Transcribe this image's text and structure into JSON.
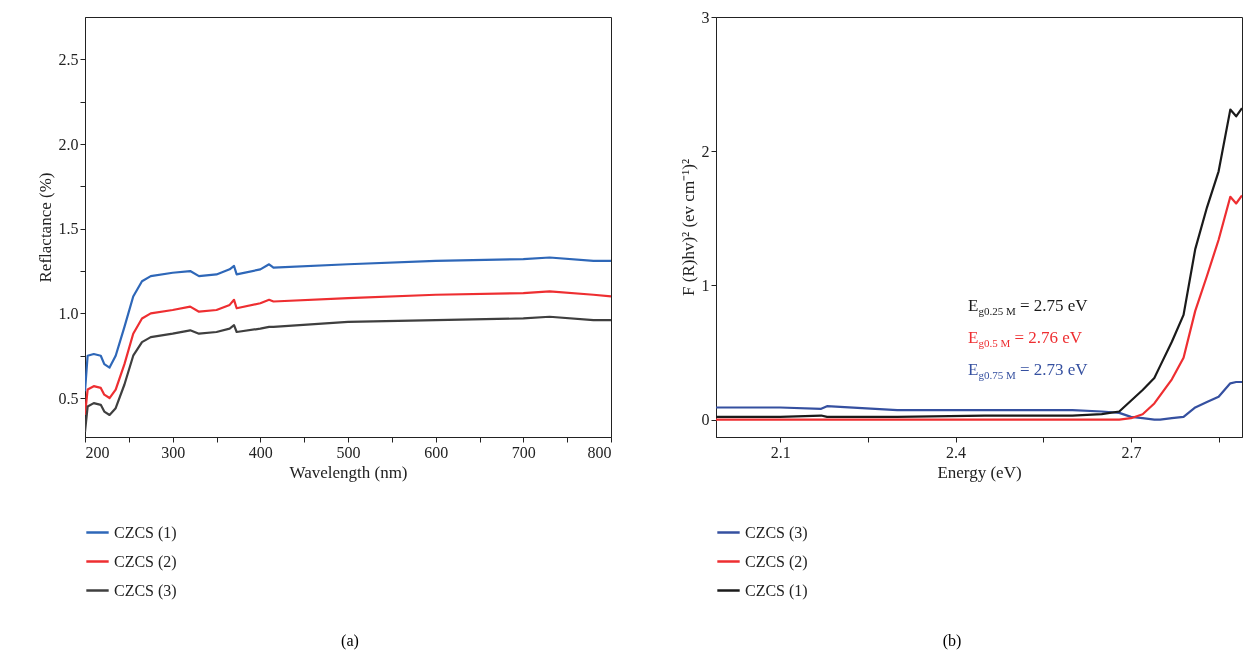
{
  "chart_data": [
    {
      "type": "line",
      "xlabel": "Wavelength (nm)",
      "ylabel": "Reflactance (%)",
      "xlim": [
        200,
        800
      ],
      "ylim": [
        0.27,
        2.75
      ],
      "xticks": [
        200,
        {
          "value": 250,
          "label": null
        },
        300,
        {
          "value": 350,
          "label": null
        },
        400,
        {
          "value": 450,
          "label": null
        },
        500,
        {
          "value": 550,
          "label": null
        },
        600,
        {
          "value": 650,
          "label": null
        },
        700,
        {
          "value": 750,
          "label": null
        },
        800
      ],
      "yticks": [
        0.5,
        {
          "value": 0.75,
          "label": null
        },
        {
          "value": 1,
          "label": "1.0"
        },
        {
          "value": 1.25,
          "label": null
        },
        1.5,
        {
          "value": 1.75,
          "label": null
        },
        {
          "value": 2,
          "label": "2.0"
        },
        {
          "value": 2.25,
          "label": null
        },
        2.5
      ],
      "legend": "bottom",
      "annotations": [
        "(a)"
      ],
      "x": [
        200,
        203,
        210,
        218,
        222,
        228,
        235,
        245,
        255,
        265,
        275,
        300,
        320,
        330,
        350,
        365,
        370,
        373,
        400,
        410,
        415,
        500,
        600,
        700,
        730,
        780,
        800
      ],
      "series": [
        {
          "name": "CZCS (1)",
          "color": "#2e67b8",
          "values": [
            0.54,
            0.75,
            0.76,
            0.75,
            0.7,
            0.68,
            0.75,
            0.92,
            1.1,
            1.19,
            1.22,
            1.24,
            1.25,
            1.22,
            1.23,
            1.26,
            1.28,
            1.23,
            1.26,
            1.29,
            1.27,
            1.29,
            1.31,
            1.32,
            1.33,
            1.31,
            1.31
          ]
        },
        {
          "name": "CZCS (2)",
          "color": "#ee2e31",
          "values": [
            0.4,
            0.55,
            0.57,
            0.56,
            0.52,
            0.5,
            0.55,
            0.7,
            0.88,
            0.97,
            1.0,
            1.02,
            1.04,
            1.01,
            1.02,
            1.05,
            1.08,
            1.03,
            1.06,
            1.08,
            1.07,
            1.09,
            1.11,
            1.12,
            1.13,
            1.11,
            1.1
          ]
        },
        {
          "name": "CZCS (3)",
          "color": "#3f3f3f",
          "values": [
            0.3,
            0.45,
            0.47,
            0.46,
            0.42,
            0.4,
            0.44,
            0.58,
            0.75,
            0.83,
            0.86,
            0.88,
            0.9,
            0.88,
            0.89,
            0.91,
            0.93,
            0.89,
            0.91,
            0.92,
            0.92,
            0.95,
            0.96,
            0.97,
            0.98,
            0.96,
            0.96
          ]
        }
      ]
    },
    {
      "type": "line",
      "xlabel": "Energy (eV)",
      "ylabel": "F (R)hv)² (ev cm⁻¹)²",
      "xlim": [
        1.99,
        2.89
      ],
      "ylim": [
        -0.13,
        3
      ],
      "xticks": [
        2.1,
        {
          "value": 2.25,
          "label": null
        },
        2.4,
        {
          "value": 2.55,
          "label": null
        },
        2.7,
        {
          "value": 2.85,
          "label": null
        }
      ],
      "yticks": [
        0,
        1,
        2,
        3
      ],
      "legend": "bottom",
      "annotations": [
        {
          "text": "E$_{g0.25 M}$ = 2.75 eV"
        },
        {
          "text": "E$_{g0.5 M}$ = 2.76 eV"
        },
        {
          "text": "E$_{g0.75 M}$ = 2.73 eV"
        },
        "(b)"
      ],
      "x": [
        1.99,
        2.1,
        2.17,
        2.18,
        2.3,
        2.45,
        2.6,
        2.65,
        2.68,
        2.7,
        2.72,
        2.74,
        2.75,
        2.77,
        2.79,
        2.81,
        2.83,
        2.85,
        2.87,
        2.88,
        2.89
      ],
      "series": [
        {
          "name": "CZCS (3)",
          "color": "#3550a0",
          "values": [
            0.09,
            0.09,
            0.08,
            0.1,
            0.07,
            0.07,
            0.07,
            0.06,
            0.05,
            0.02,
            0.01,
            0.0,
            0.0,
            0.01,
            0.02,
            0.09,
            0.13,
            0.17,
            0.27,
            0.28,
            0.28
          ]
        },
        {
          "name": "CZCS (2)",
          "color": "#ee2e31",
          "values": [
            0.0,
            0.0,
            0.0,
            0.0,
            0.0,
            0.0,
            0.0,
            0.0,
            0.0,
            0.01,
            0.04,
            0.12,
            0.18,
            0.3,
            0.46,
            0.81,
            1.07,
            1.34,
            1.66,
            1.61,
            1.67
          ]
        },
        {
          "name": "CZCS (1)",
          "color": "#1a1a1a",
          "values": [
            0.02,
            0.02,
            0.03,
            0.02,
            0.02,
            0.03,
            0.03,
            0.04,
            0.06,
            0.14,
            0.22,
            0.31,
            0.4,
            0.58,
            0.78,
            1.27,
            1.58,
            1.85,
            2.31,
            2.26,
            2.32
          ]
        }
      ]
    }
  ]
}
